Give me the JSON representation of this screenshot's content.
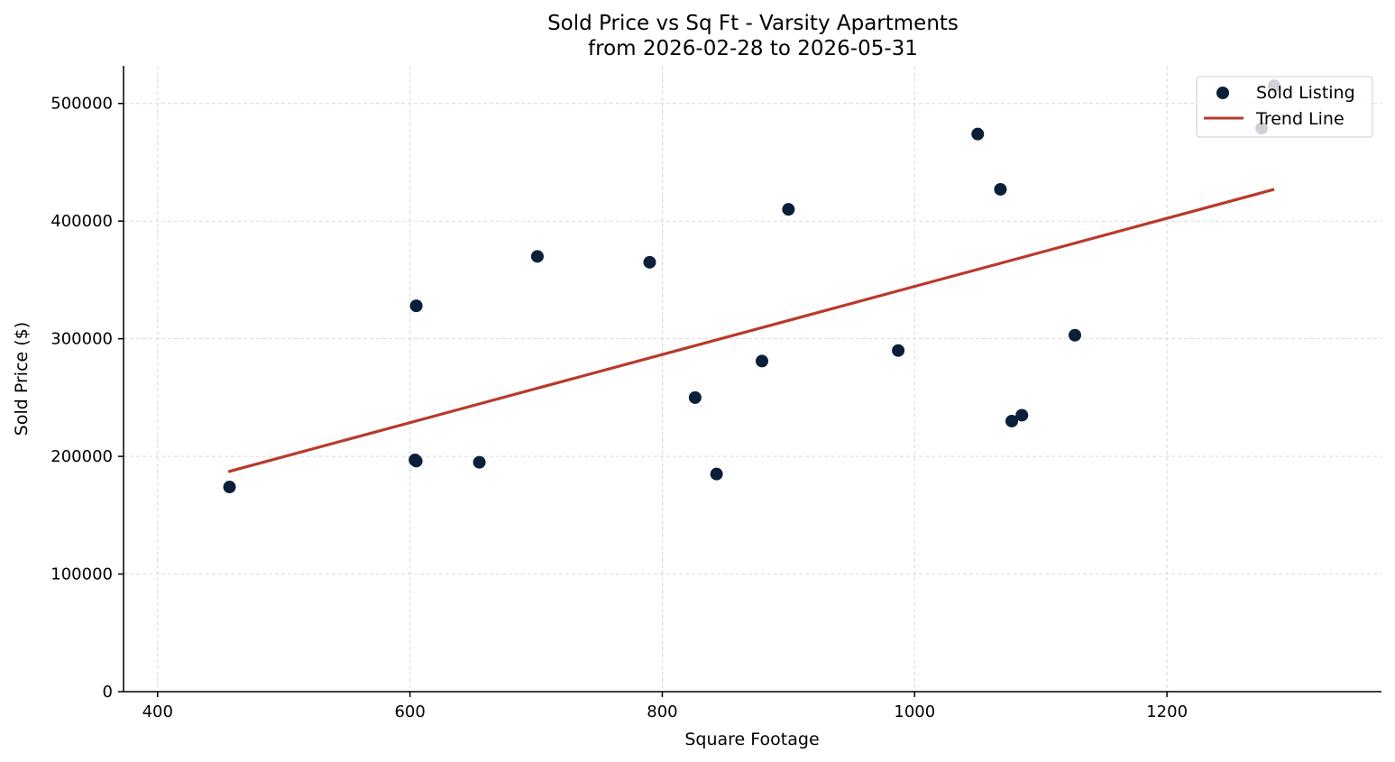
{
  "chart_data": {
    "type": "scatter",
    "title_line1": "Sold Price vs Sq Ft - Varsity Apartments",
    "title_line2": "from 2026-02-28 to 2026-05-31",
    "xlabel": "Square Footage",
    "ylabel": "Sold Price ($)",
    "xlim": [
      373,
      1370
    ],
    "ylim": [
      0,
      532000
    ],
    "xticks": [
      400,
      600,
      800,
      1000,
      1200
    ],
    "yticks": [
      0,
      100000,
      200000,
      300000,
      400000,
      500000
    ],
    "grid": true,
    "legend_position": "top-right",
    "colors": {
      "points": "#0b1f3a",
      "trend": "#b83a2b"
    },
    "series": [
      {
        "name": "Sold Listing",
        "kind": "scatter",
        "points": [
          {
            "x": 457,
            "y": 174000
          },
          {
            "x": 605,
            "y": 328000
          },
          {
            "x": 604,
            "y": 197000
          },
          {
            "x": 605,
            "y": 196000
          },
          {
            "x": 655,
            "y": 195000
          },
          {
            "x": 701,
            "y": 370000
          },
          {
            "x": 790,
            "y": 365000
          },
          {
            "x": 826,
            "y": 250000
          },
          {
            "x": 843,
            "y": 185000
          },
          {
            "x": 879,
            "y": 281000
          },
          {
            "x": 900,
            "y": 410000
          },
          {
            "x": 987,
            "y": 290000
          },
          {
            "x": 1050,
            "y": 474000
          },
          {
            "x": 1068,
            "y": 427000
          },
          {
            "x": 1077,
            "y": 230000
          },
          {
            "x": 1085,
            "y": 235000
          },
          {
            "x": 1127,
            "y": 303000
          },
          {
            "x": 1275,
            "y": 479000
          },
          {
            "x": 1285,
            "y": 515000
          }
        ]
      },
      {
        "name": "Trend Line",
        "kind": "line",
        "points": [
          {
            "x": 456,
            "y": 187000
          },
          {
            "x": 1285,
            "y": 427000
          }
        ]
      }
    ]
  }
}
